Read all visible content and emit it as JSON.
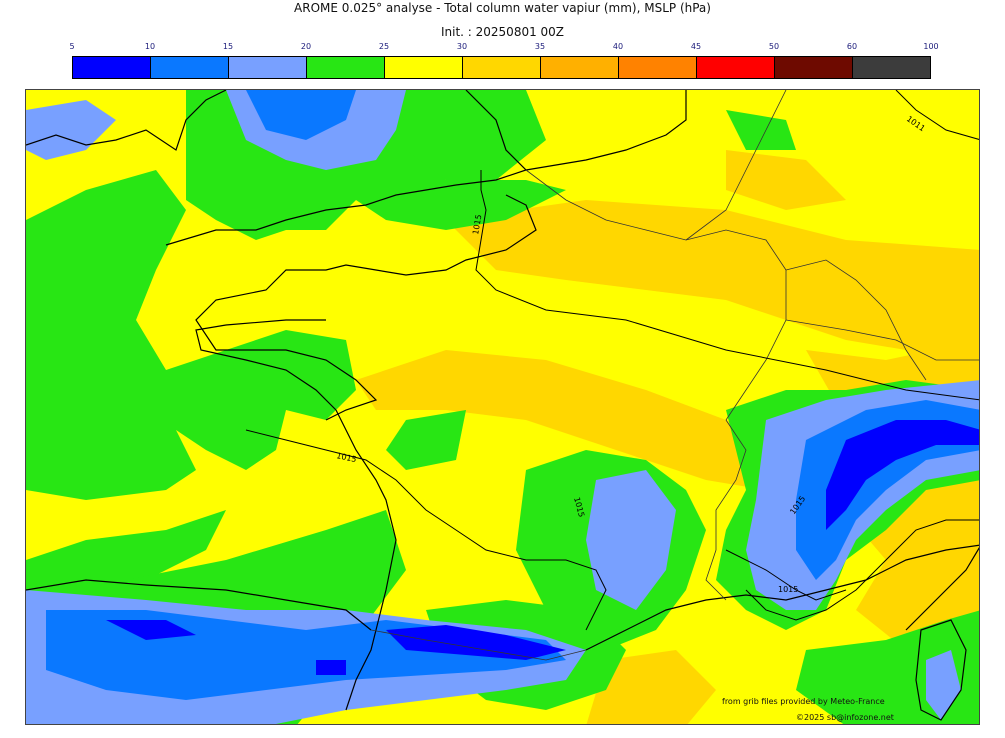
{
  "title": "AROME 0.025° analyse - Total column water vapiur (mm), MSLP (hPa)",
  "init": "Init. : 20250801 00Z",
  "colorbar": {
    "ticks": [
      "5",
      "10",
      "15",
      "20",
      "25",
      "30",
      "35",
      "40",
      "45",
      "50",
      "60",
      "100"
    ],
    "colors": [
      "#0000ff",
      "#0a78ff",
      "#78a0ff",
      "#28e614",
      "#ffff00",
      "#ffd700",
      "#ffb000",
      "#ff8200",
      "#ff0000",
      "#6e0a00",
      "#3c3c3c"
    ]
  },
  "map": {
    "isobar_labels": [
      "1011",
      "1015",
      "1015",
      "1015",
      "1015",
      "1015"
    ]
  },
  "credits": {
    "source": "from grib files provided by Meteo-France",
    "copyright": "©2025 sb@infozone.net"
  }
}
